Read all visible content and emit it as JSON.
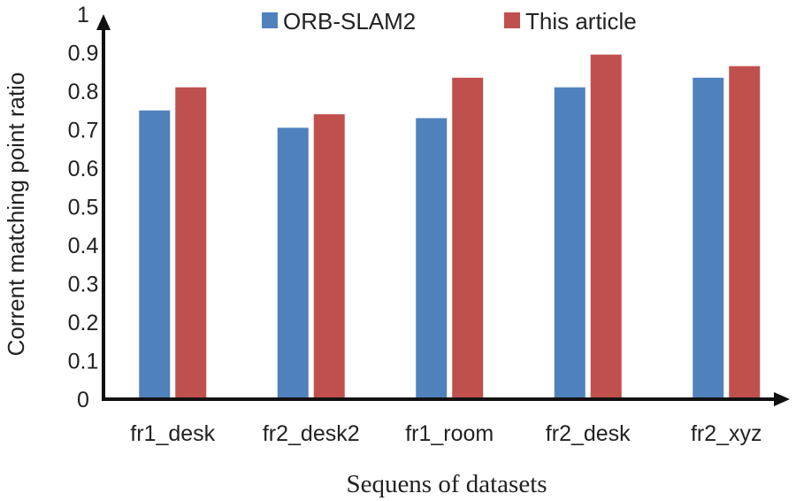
{
  "chart_data": {
    "type": "bar",
    "title": "",
    "xlabel": "Sequens of datasets",
    "ylabel": "Corrent matching point ratio",
    "categories": [
      "fr1_desk",
      "fr2_desk2",
      "fr1_room",
      "fr2_desk",
      "fr2_xyz"
    ],
    "series": [
      {
        "name": "ORB-SLAM2",
        "color": "#4F81BD",
        "values": [
          0.75,
          0.705,
          0.73,
          0.81,
          0.835
        ]
      },
      {
        "name": "This article",
        "color": "#C0504D",
        "values": [
          0.81,
          0.74,
          0.835,
          0.895,
          0.865
        ]
      }
    ],
    "ylim": [
      0,
      1
    ],
    "yticks": [
      "0",
      "0.1",
      "0.2",
      "0.3",
      "0.4",
      "0.5",
      "0.6",
      "0.7",
      "0.8",
      "0.9",
      "1"
    ],
    "grid": false,
    "legend_position": "top"
  }
}
